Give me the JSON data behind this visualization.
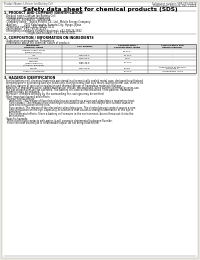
{
  "bg_color": "#e8e8e0",
  "page_bg": "#ffffff",
  "title": "Safety data sheet for chemical products (SDS)",
  "header_left": "Product Name: Lithium Ion Battery Cell",
  "header_right_line1": "Substance number: SBR-049-00618",
  "header_right_line2": "Established / Revision: Dec.7.2018",
  "section1_title": "1. PRODUCT AND COMPANY IDENTIFICATION",
  "section1_lines": [
    "· Product name: Lithium Ion Battery Cell",
    "· Product code: Cylindrical-type cell",
    "   SV1865S0, SV1865S0L, SV1865SA",
    "· Company name:   Sanyo Electric Co., Ltd.  Mobile Energy Company",
    "· Address:         2001 Kamikosaka, Sumoto-City, Hyogo, Japan",
    "· Telephone number:  +81-799-26-4111",
    "· Fax number:  +81-799-26-4129",
    "· Emergency telephone number (daytime): +81-799-26-3842",
    "                              (Night and holiday): +81-799-26-4101"
  ],
  "section2_title": "2. COMPOSITION / INFORMATION ON INGREDIENTS",
  "section2_sub1": "· Substance or preparation: Preparation",
  "section2_sub2": "· Information about the chemical nature of product:",
  "table_col_labels": [
    "Component\nchemical name",
    "CAS number",
    "Concentration /\nConcentration range",
    "Classification and\nhazard labeling"
  ],
  "table_rows": [
    [
      "Lithium cobalt oxide\n(LiMn/CoO(OH))",
      "-",
      "30-60%",
      "-"
    ],
    [
      "Iron",
      "7439-89-6",
      "15-20%",
      "-"
    ],
    [
      "Aluminum",
      "7429-90-5",
      "2-5%",
      "-"
    ],
    [
      "Graphite\n(Flake graphite)\n(Artificial graphite)",
      "7782-42-5\n7782-44-2",
      "10-20%",
      "-"
    ],
    [
      "Copper",
      "7440-50-8",
      "5-15%",
      "Sensitization of the skin\ngroup No.2"
    ],
    [
      "Organic electrolyte",
      "-",
      "10-20%",
      "Inflammable liquid"
    ]
  ],
  "section3_title": "3. HAZARDS IDENTIFICATION",
  "section3_para1": [
    "For the battery cell, chemical materials are stored in a hermetically sealed metal case, designed to withstand",
    "temperatures in processing and use conditions. During normal use, as a result, during normal use, there is no",
    "physical danger of ignition or explosion and thermal danger of hazardous materials leakage.",
    "However, if exposed to a fire, added mechanical shocks, decomposed, when electro-chemical by miss-use,",
    "the gas release vent will be operated. The battery cell case will be breached if fire pattern. Hazardous",
    "materials may be released.",
    "Moreover, if heated strongly by the surrounding fire, soot gas may be emitted."
  ],
  "section3_bullet1": "· Most important hazard and effects:",
  "section3_human": "Human health effects:",
  "section3_health_lines": [
    "Inhalation: The release of the electrolyte has an anesthesia action and stimulates a respiratory tract.",
    "Skin contact: The release of the electrolyte stimulates a skin. The electrolyte skin contact causes a",
    "sore and stimulation on the skin.",
    "Eye contact: The release of the electrolyte stimulates eyes. The electrolyte eye contact causes a sore",
    "and stimulation on the eye. Especially, a substance that causes a strong inflammation of the eye is",
    "contained.",
    "Environmental effects: Since a battery cell remains in the environment, do not throw out it into the",
    "environment."
  ],
  "section3_bullet2": "· Specific hazards:",
  "section3_specific": [
    "If the electrolyte contacts with water, it will generate detrimental hydrogen fluoride.",
    "Since the neat electrolyte is inflammable liquid, do not bring close to fire."
  ]
}
